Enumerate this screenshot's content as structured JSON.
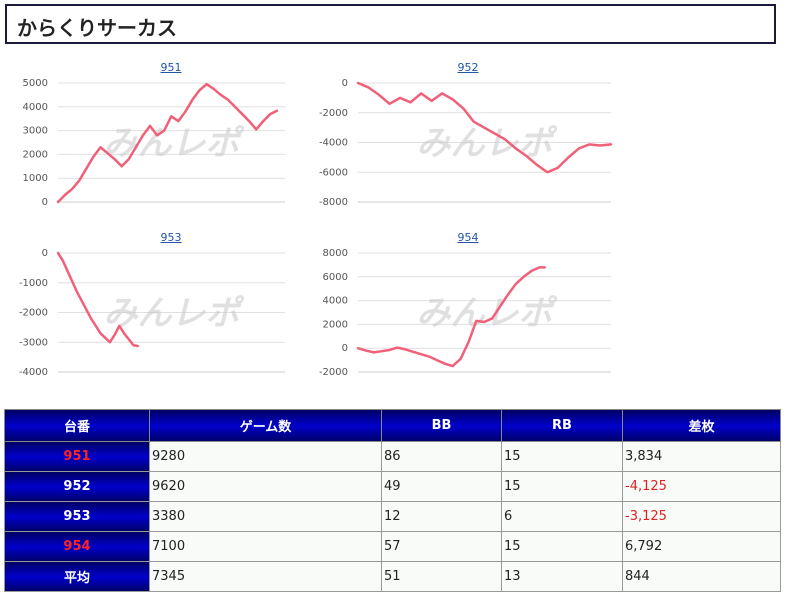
{
  "page": {
    "title": "からくりサーカス"
  },
  "watermark": "みんレポ",
  "colors": {
    "line": "#f06078",
    "grid": "#e0e0e0",
    "axis": "#cccccc",
    "tick_text": "#555555",
    "header_dark": "#000066",
    "header_mid": "#0000cc",
    "negative": "#dd2222",
    "highlight_id": "#ff2222"
  },
  "chart_data": [
    {
      "type": "line",
      "title": "951",
      "ylim": [
        0,
        5000
      ],
      "yticks": [
        0,
        1000,
        2000,
        3000,
        4000,
        5000
      ],
      "ytick_labels": [
        "0",
        "1000",
        "2000",
        "3000",
        "4000",
        "5000"
      ],
      "x": [
        0,
        300,
        600,
        900,
        1200,
        1500,
        1800,
        2100,
        2400,
        2700,
        3000,
        3300,
        3600,
        3900,
        4200,
        4500,
        4800,
        5100,
        5400,
        5700,
        6000,
        6300,
        6600,
        6900,
        7200,
        7500,
        7800,
        8100,
        8400,
        8700,
        9000,
        9280
      ],
      "series": [
        {
          "values": [
            0,
            300,
            550,
            900,
            1400,
            1900,
            2300,
            2050,
            1800,
            1500,
            1800,
            2300,
            2800,
            3200,
            2800,
            3000,
            3600,
            3400,
            3800,
            4300,
            4700,
            4950,
            4750,
            4500,
            4300,
            4000,
            3700,
            3400,
            3050,
            3400,
            3700,
            3834
          ]
        }
      ]
    },
    {
      "type": "line",
      "title": "952",
      "ylim": [
        -8000,
        0
      ],
      "yticks": [
        -8000,
        -6000,
        -4000,
        -2000,
        0
      ],
      "ytick_labels": [
        "-8000",
        "-6000",
        "-4000",
        "-2000",
        "0"
      ],
      "x": [
        0,
        400,
        800,
        1200,
        1600,
        2000,
        2400,
        2800,
        3200,
        3600,
        4000,
        4400,
        4800,
        5200,
        5600,
        6000,
        6400,
        6800,
        7200,
        7600,
        8000,
        8400,
        8800,
        9200,
        9620
      ],
      "series": [
        {
          "values": [
            0,
            -300,
            -800,
            -1400,
            -1000,
            -1300,
            -700,
            -1200,
            -700,
            -1100,
            -1700,
            -2600,
            -3000,
            -3400,
            -3800,
            -4400,
            -4900,
            -5500,
            -6000,
            -5700,
            -5000,
            -4400,
            -4125,
            -4200,
            -4125
          ]
        }
      ]
    },
    {
      "type": "line",
      "title": "953",
      "ylim": [
        -4000,
        0
      ],
      "yticks": [
        -4000,
        -3000,
        -2000,
        -1000,
        0
      ],
      "ytick_labels": [
        "-4000",
        "-3000",
        "-2000",
        "-1000",
        "0"
      ],
      "x": [
        0,
        200,
        400,
        600,
        800,
        1000,
        1200,
        1400,
        1600,
        1800,
        2000,
        2200,
        2400,
        2600,
        2800,
        3000,
        3200,
        3380
      ],
      "series": [
        {
          "values": [
            0,
            -250,
            -600,
            -950,
            -1300,
            -1600,
            -1900,
            -2200,
            -2450,
            -2700,
            -2850,
            -3000,
            -2750,
            -2450,
            -2700,
            -2900,
            -3100,
            -3125
          ]
        }
      ]
    },
    {
      "type": "line",
      "title": "954",
      "ylim": [
        -2000,
        8000
      ],
      "yticks": [
        -2000,
        0,
        2000,
        4000,
        6000,
        8000
      ],
      "ytick_labels": [
        "-2000",
        "0",
        "2000",
        "4000",
        "6000",
        "8000"
      ],
      "x": [
        0,
        300,
        600,
        900,
        1200,
        1500,
        1800,
        2100,
        2400,
        2700,
        3000,
        3300,
        3600,
        3900,
        4200,
        4500,
        4800,
        5100,
        5400,
        5700,
        6000,
        6300,
        6600,
        6900,
        7100
      ],
      "series": [
        {
          "values": [
            0,
            -200,
            -350,
            -250,
            -150,
            50,
            -100,
            -300,
            -500,
            -700,
            -1000,
            -1300,
            -1500,
            -900,
            500,
            2300,
            2200,
            2500,
            3500,
            4500,
            5400,
            6000,
            6500,
            6792,
            6792
          ]
        }
      ]
    }
  ],
  "table": {
    "headers": [
      "台番",
      "ゲーム数",
      "BB",
      "RB",
      "差枚"
    ],
    "rows": [
      {
        "id": "951",
        "games": "9280",
        "bb": "86",
        "rb": "15",
        "diff": "3,834"
      },
      {
        "id": "952",
        "games": "9620",
        "bb": "49",
        "rb": "15",
        "diff": "-4,125"
      },
      {
        "id": "953",
        "games": "3380",
        "bb": "12",
        "rb": "6",
        "diff": "-3,125"
      },
      {
        "id": "954",
        "games": "7100",
        "bb": "57",
        "rb": "15",
        "diff": "6,792"
      },
      {
        "id": "平均",
        "games": "7345",
        "bb": "51",
        "rb": "13",
        "diff": "844"
      }
    ]
  }
}
